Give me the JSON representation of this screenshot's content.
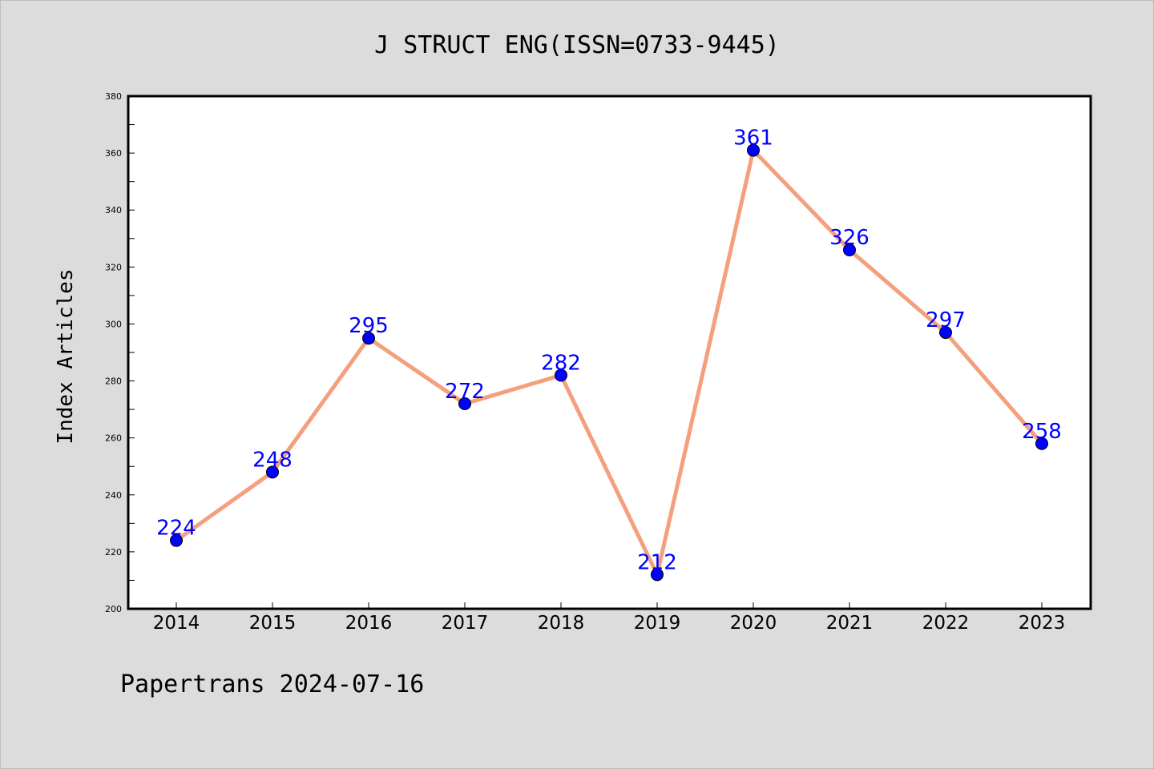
{
  "chart_data": {
    "type": "line",
    "title": "J STRUCT ENG(ISSN=0733-9445)",
    "ylabel": "Index Articles",
    "xlabel": "",
    "footer": "Papertrans 2024-07-16",
    "categories": [
      "2014",
      "2015",
      "2016",
      "2017",
      "2018",
      "2019",
      "2020",
      "2021",
      "2022",
      "2023"
    ],
    "series": [
      {
        "values": [
          224,
          248,
          295,
          272,
          282,
          212,
          361,
          326,
          297,
          258
        ]
      }
    ],
    "ylim": [
      200,
      380
    ],
    "yticks": [
      200,
      220,
      240,
      260,
      280,
      300,
      320,
      340,
      360,
      380
    ],
    "grid": false,
    "colors": {
      "line": "#f4a07e",
      "marker": "#0000ff",
      "label": "#0000ff",
      "plot_bg": "#ffffff",
      "page_bg": "#dcdcdc"
    }
  }
}
